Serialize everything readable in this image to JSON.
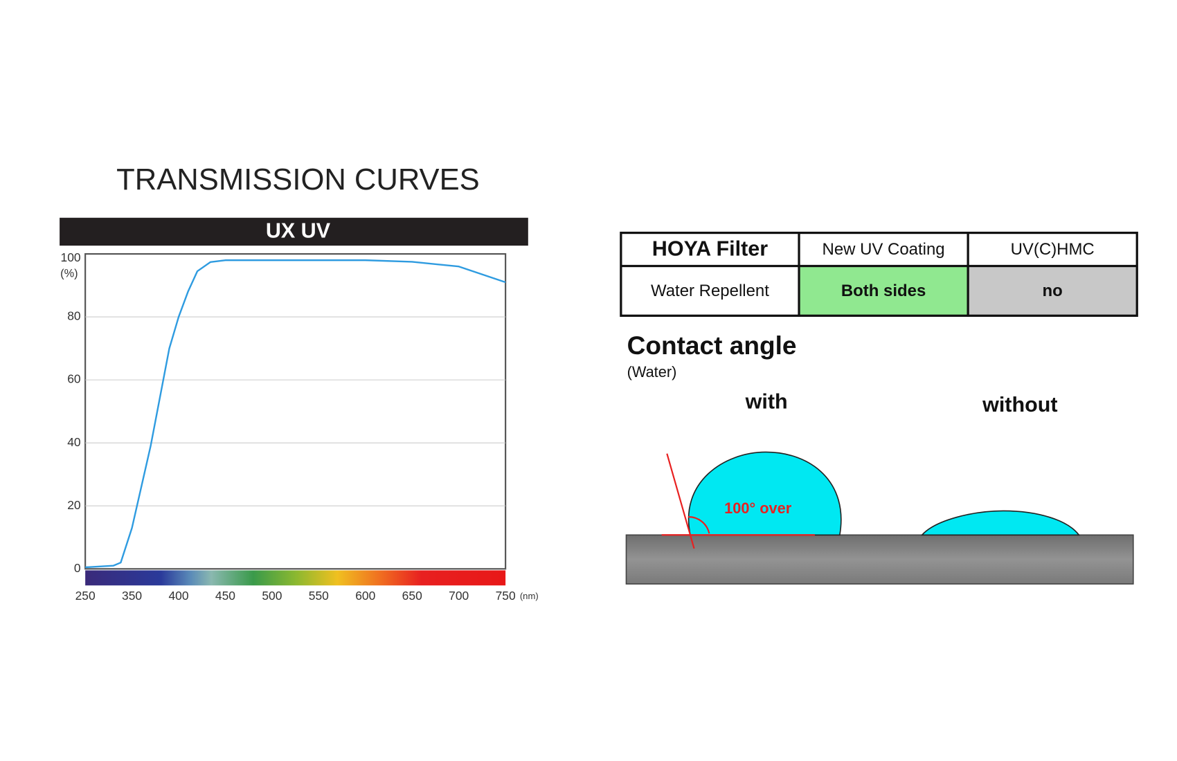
{
  "chart_data": {
    "type": "line",
    "title": "TRANSMISSION CURVES",
    "subtitle": "UX UV",
    "x_label": "(nm)",
    "y_label": "(%)",
    "x": [
      250,
      310,
      326,
      350,
      370,
      390,
      400,
      410,
      420,
      434,
      450,
      500,
      550,
      600,
      650,
      700,
      750
    ],
    "values": [
      0.5,
      1,
      2,
      13,
      39,
      70,
      80,
      88,
      94.5,
      97.4,
      98,
      98,
      98,
      98,
      97.5,
      96,
      91
    ],
    "color": "#2e9be0",
    "xlim": [
      250,
      750
    ],
    "xticks": [
      250,
      350,
      400,
      450,
      500,
      550,
      600,
      650,
      700,
      750
    ],
    "ylim": [
      0,
      100
    ],
    "yticks": [
      0,
      20,
      40,
      60,
      80,
      100
    ],
    "grid": true
  },
  "table": {
    "header": [
      "HOYA  Filter",
      "New UV Coating",
      "UV(C)HMC"
    ],
    "rows": [
      [
        "Water Repellent",
        "Both sides",
        "no"
      ]
    ]
  },
  "contact": {
    "title": "Contact angle",
    "subtitle": "(Water)",
    "with": "with",
    "without": "without",
    "angle": "100° over"
  }
}
